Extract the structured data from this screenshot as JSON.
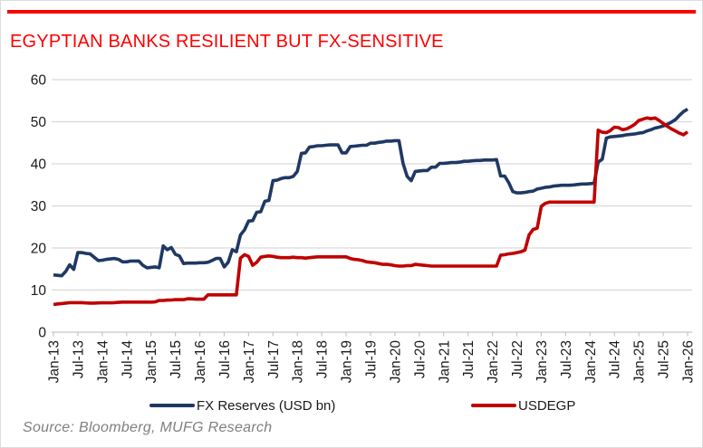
{
  "panel": {
    "title": "EGYPTIAN BANKS RESILIENT BUT FX-SENSITIVE",
    "source_note": "Source: Bloomberg, MUFG Research"
  },
  "colors": {
    "title_red": "#fe0000",
    "rule_red": "#fe0000",
    "fx_reserves_navy": "#1f3864",
    "usdegp_red": "#c00000",
    "gridline_gray": "#d9d9d9",
    "axis_line_gray": "#c6c6c6",
    "axis_text": "#1a1a1a",
    "source_gray": "#7f7f7f"
  },
  "legend": {
    "items": [
      {
        "label": "FX Reserves (USD bn)",
        "color": "#1f3864"
      },
      {
        "label": "USDEGP",
        "color": "#c00000"
      }
    ]
  },
  "chart_data": {
    "type": "line",
    "title": "EGYPTIAN BANKS RESILIENT BUT FX-SENSITIVE",
    "x_unit": "month",
    "x_start_label": "Jan-13",
    "x_end_label": "Jan-26",
    "x_tick_labels": [
      "Jan-13",
      "Jul-13",
      "Jan-14",
      "Jul-14",
      "Jan-15",
      "Jul-15",
      "Jan-16",
      "Jul-16",
      "Jan-17",
      "Jul-17",
      "Jan-18",
      "Jul-18",
      "Jan-19",
      "Jul-19",
      "Jan-20",
      "Jul-20",
      "Jan-21",
      "Jul-21",
      "Jan-22",
      "Jul-22",
      "Jan-23",
      "Jul-23",
      "Jan-24",
      "Jul-24",
      "Jan-25",
      "Jul-25",
      "Jan-26"
    ],
    "ylim": [
      0,
      60
    ],
    "y_ticks": [
      0,
      10,
      20,
      30,
      40,
      50,
      60
    ],
    "grid": "horizontal",
    "legend_position": "bottom",
    "series": [
      {
        "name": "FX Reserves (USD bn)",
        "slug": "fx-reserves-line",
        "color": "#1f3864",
        "values": [
          13.6,
          13.5,
          13.4,
          14.4,
          16.0,
          14.9,
          18.9,
          18.9,
          18.7,
          18.6,
          17.8,
          17.0,
          17.1,
          17.3,
          17.4,
          17.5,
          17.3,
          16.7,
          16.7,
          16.9,
          16.9,
          16.9,
          15.9,
          15.3,
          15.4,
          15.5,
          15.3,
          20.5,
          19.6,
          20.1,
          18.5,
          18.1,
          16.3,
          16.4,
          16.4,
          16.4,
          16.5,
          16.5,
          16.6,
          17.0,
          17.5,
          17.5,
          15.5,
          16.6,
          19.6,
          19.1,
          23.1,
          24.3,
          26.4,
          26.5,
          28.5,
          28.6,
          31.1,
          31.3,
          36.0,
          36.1,
          36.5,
          36.7,
          36.7,
          37.0,
          38.2,
          42.5,
          42.6,
          44.0,
          44.1,
          44.3,
          44.3,
          44.4,
          44.5,
          44.5,
          44.5,
          42.6,
          42.6,
          44.1,
          44.2,
          44.3,
          44.4,
          44.4,
          44.9,
          44.9,
          45.1,
          45.2,
          45.4,
          45.4,
          45.5,
          45.5,
          40.1,
          37.0,
          36.0,
          38.2,
          38.3,
          38.4,
          38.4,
          39.2,
          39.2,
          40.1,
          40.1,
          40.2,
          40.3,
          40.3,
          40.4,
          40.6,
          40.6,
          40.7,
          40.8,
          40.8,
          40.9,
          40.9,
          40.9,
          41.0,
          37.1,
          37.1,
          35.5,
          33.4,
          33.1,
          33.1,
          33.2,
          33.4,
          33.5,
          34.0,
          34.2,
          34.4,
          34.5,
          34.7,
          34.8,
          34.9,
          34.9,
          34.9,
          35.0,
          35.1,
          35.2,
          35.2,
          35.3,
          35.4,
          40.4,
          41.1,
          46.1,
          46.4,
          46.5,
          46.6,
          46.7,
          46.9,
          47.0,
          47.1,
          47.3,
          47.4,
          47.8,
          48.1,
          48.5,
          48.7,
          49.0,
          49.4,
          49.9,
          50.5,
          51.5,
          52.4,
          53.0
        ]
      },
      {
        "name": "USDEGP",
        "slug": "usdegp-line",
        "color": "#c00000",
        "values": [
          6.55,
          6.7,
          6.8,
          6.9,
          7.0,
          7.0,
          7.0,
          7.0,
          6.95,
          6.9,
          6.9,
          6.95,
          6.96,
          6.96,
          6.97,
          7.01,
          7.08,
          7.15,
          7.15,
          7.15,
          7.15,
          7.15,
          7.15,
          7.15,
          7.15,
          7.19,
          7.53,
          7.53,
          7.62,
          7.63,
          7.73,
          7.73,
          7.73,
          7.93,
          7.91,
          7.83,
          7.83,
          7.83,
          8.85,
          8.85,
          8.85,
          8.85,
          8.85,
          8.85,
          8.85,
          8.85,
          17.6,
          18.4,
          18.0,
          15.9,
          16.6,
          17.8,
          18.0,
          18.1,
          18.0,
          17.8,
          17.7,
          17.7,
          17.7,
          17.8,
          17.7,
          17.7,
          17.6,
          17.7,
          17.8,
          17.9,
          17.9,
          17.9,
          17.9,
          17.9,
          17.9,
          17.9,
          17.9,
          17.5,
          17.3,
          17.2,
          17.0,
          16.7,
          16.6,
          16.5,
          16.3,
          16.1,
          16.1,
          16.0,
          15.8,
          15.7,
          15.7,
          15.8,
          15.8,
          16.1,
          16.0,
          15.9,
          15.8,
          15.7,
          15.7,
          15.7,
          15.7,
          15.7,
          15.7,
          15.7,
          15.7,
          15.7,
          15.7,
          15.7,
          15.7,
          15.7,
          15.7,
          15.7,
          15.7,
          15.7,
          18.3,
          18.4,
          18.6,
          18.7,
          18.9,
          19.1,
          19.5,
          23.1,
          24.4,
          24.7,
          29.9,
          30.6,
          30.9,
          30.9,
          30.9,
          30.9,
          30.9,
          30.9,
          30.9,
          30.9,
          30.9,
          30.9,
          30.9,
          30.9,
          48.0,
          47.5,
          47.4,
          47.9,
          48.7,
          48.6,
          48.1,
          48.3,
          48.8,
          49.4,
          50.3,
          50.6,
          50.9,
          50.7,
          50.9,
          50.3,
          49.6,
          48.9,
          48.3,
          47.8,
          47.3,
          46.9,
          47.6
        ]
      }
    ]
  }
}
